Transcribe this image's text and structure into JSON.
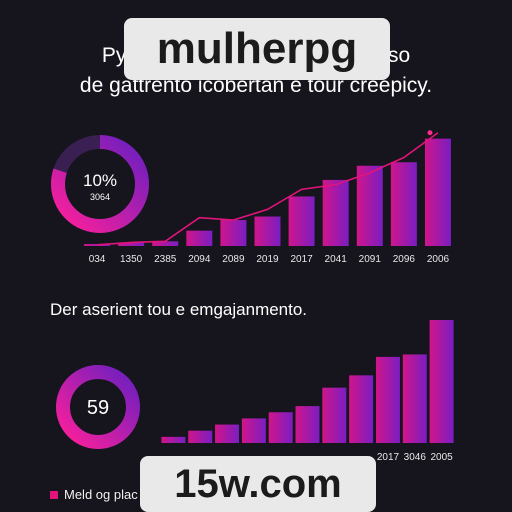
{
  "header": {
    "title_line1": "Py",
    "title_line1_end": "eso",
    "title_line2": "de gattrento icobertan e tour creepicy."
  },
  "watermarks": {
    "top": "mulherpg",
    "bottom": "15w.com"
  },
  "subtitle": "Der aserient tou e emgajanmento.",
  "legend": {
    "label": "Meld og plac"
  },
  "colors": {
    "background": "#16141c",
    "accent_pink": "#e0147a",
    "accent_purple": "#8a1fc4"
  },
  "chart_data": [
    {
      "type": "bar",
      "categories": [
        "034",
        "1350",
        "2385",
        "2094",
        "2089",
        "2019",
        "2017",
        "2041",
        "2091",
        "2096",
        "2006"
      ],
      "values": [
        1,
        3,
        4,
        13,
        22,
        25,
        42,
        56,
        68,
        71,
        91
      ],
      "line_values": [
        1,
        3,
        4,
        24,
        22,
        31,
        48,
        52,
        62,
        75,
        96
      ],
      "donut": {
        "label": "10%",
        "sublabel": "3064",
        "percent": 10
      },
      "ylim": [
        0,
        100
      ],
      "grid": false
    },
    {
      "type": "bar",
      "categories": [
        "",
        "",
        "",
        "",
        "",
        "",
        "",
        "",
        "2017",
        "3046",
        "2005"
      ],
      "values": [
        5,
        10,
        15,
        20,
        25,
        30,
        45,
        55,
        70,
        72,
        100
      ],
      "donut": {
        "label": "59",
        "percent": 59
      },
      "ylim": [
        0,
        100
      ],
      "grid": false
    }
  ]
}
